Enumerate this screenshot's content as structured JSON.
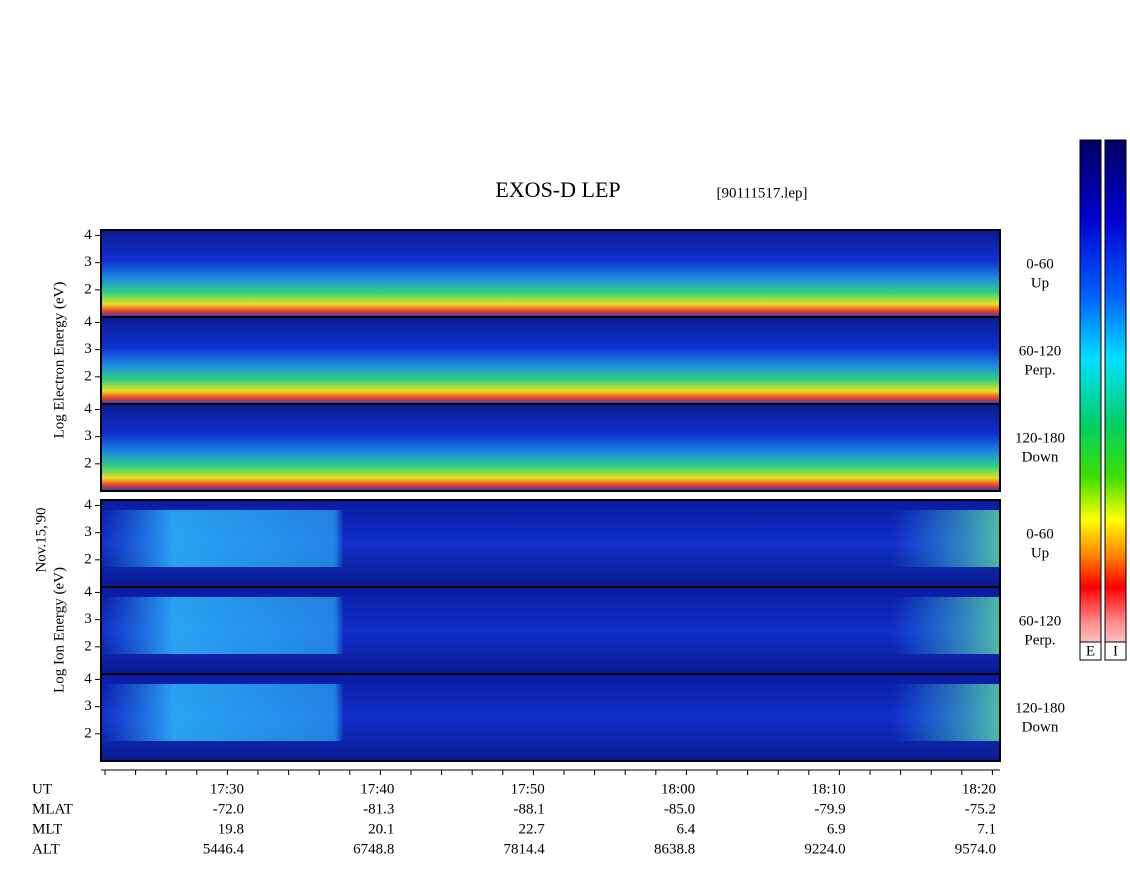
{
  "header": {
    "title": "EXOS-D LEP",
    "file": "[90111517.lep]",
    "date": "Nov.15,'90"
  },
  "electron": {
    "ylabel": "Log Electron Energy (eV)",
    "ylim": [
      1,
      4.2
    ],
    "yticks": [
      2,
      3,
      4
    ],
    "panels": [
      {
        "angle": "0-60",
        "direction": "Up"
      },
      {
        "angle": "60-120",
        "direction": "Perp."
      },
      {
        "angle": "120-180",
        "direction": "Down"
      }
    ]
  },
  "ion": {
    "ylabel": "Log Ion Energy (eV)",
    "ylim": [
      1,
      4.2
    ],
    "yticks": [
      2,
      3,
      4
    ],
    "panels": [
      {
        "angle": "0-60",
        "direction": "Up"
      },
      {
        "angle": "60-120",
        "direction": "Perp."
      },
      {
        "angle": "120-180",
        "direction": "Down"
      }
    ]
  },
  "colorbars": [
    "E",
    "I"
  ],
  "ephemeris": {
    "rows": [
      {
        "label": "UT",
        "values": [
          "17:30",
          "17:40",
          "17:50",
          "18:00",
          "18:10",
          "18:20"
        ]
      },
      {
        "label": "MLAT",
        "values": [
          "-72.0",
          "-81.3",
          "-88.1",
          "-85.0",
          "-79.9",
          "-75.2"
        ]
      },
      {
        "label": "MLT",
        "values": [
          "19.8",
          "20.1",
          "22.7",
          "6.4",
          "6.9",
          "7.1"
        ]
      },
      {
        "label": "ALT",
        "values": [
          "5446.4",
          "6748.8",
          "7814.4",
          "8638.8",
          "9224.0",
          "9574.0"
        ]
      }
    ]
  }
}
